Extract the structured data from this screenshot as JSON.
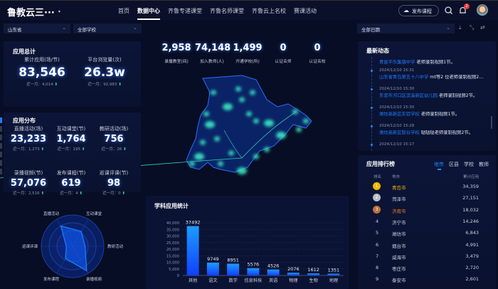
{
  "header": {
    "logo": "鲁教云三···",
    "nav": [
      "首页",
      "数据中心",
      "齐鲁专递课堂",
      "齐鲁名师课堂",
      "齐鲁云上名校",
      "赛课活动"
    ],
    "active_nav": "数据中心",
    "publish": "发布课程",
    "notifications": "2"
  },
  "filters": {
    "province": "山东省",
    "school": "全部学校",
    "date": "全部日期"
  },
  "totals": {
    "title": "应用总计",
    "items": [
      {
        "label": "累计应用(场/节)",
        "value": "83,546",
        "sub": "近一月：4,014"
      },
      {
        "label": "平台浏览量(次)",
        "value": "26.3w",
        "sub": "近一月：92,983"
      }
    ]
  },
  "distribution": {
    "title": "应用分布",
    "items": [
      {
        "label": "直播活动(场)",
        "value": "23,233",
        "sub": "近一月：1,273"
      },
      {
        "label": "互动课堂(节)",
        "value": "1,764",
        "sub": "近一月：195"
      },
      {
        "label": "教研活动(场)",
        "value": "756",
        "sub": "近一月：26"
      },
      {
        "label": "录播视频(节)",
        "value": "57,076",
        "sub": "近一月：2,516"
      },
      {
        "label": "发布课程(节)",
        "value": "619",
        "sub": "近一月：4"
      },
      {
        "label": "巡课评课(节)",
        "value": "98",
        "sub": "近一月：0"
      }
    ]
  },
  "radar": {
    "axes": [
      "直播活动",
      "互动课堂",
      "教研活动",
      "录播视频",
      "发布课程",
      "巡课评课"
    ],
    "values": [
      0.75,
      0.55,
      0.4,
      0.9,
      0.45,
      0.2
    ]
  },
  "center_stats": [
    {
      "value": "2,958",
      "label": "录播教室(间)"
    },
    {
      "value": "74,148",
      "label": "加入教师(人)"
    },
    {
      "value": "1,499",
      "label": "开通学校(所)"
    },
    {
      "value": "0",
      "label": "认证名师"
    },
    {
      "value": "0",
      "label": "认证名校"
    }
  ],
  "chart_data": {
    "type": "bar",
    "title": "学科应用统计",
    "categories": [
      "其他",
      "语文",
      "数学",
      "信息科技",
      "英语",
      "物理",
      "生物",
      "地理"
    ],
    "values": [
      37492,
      9749,
      8951,
      5576,
      4526,
      2076,
      1612,
      1351
    ],
    "ylim": [
      0,
      40000
    ],
    "yticks": [
      "0",
      "5,000",
      "10,000",
      "15,000",
      "20,000",
      "25,000",
      "30,000",
      "35,000",
      "40,000"
    ],
    "grid": true,
    "color": "#1d6bff"
  },
  "feed": {
    "title": "最新动态",
    "items": [
      {
        "date": "",
        "org": "青县平乐集镇中学",
        "text": "老师录制视频1节。"
      },
      {
        "date": "2024/12/10 15:31",
        "org": "山东省青岛第五十八中学",
        "text": "mt等2 位老师录制视频2..."
      },
      {
        "date": "2024/12/10 15:30",
        "org": "东营市河口区滨溪新区幼儿园",
        "text": "老师录制视频2节。"
      },
      {
        "date": "2024/12/10 15:30",
        "org": "潍坊高新区实验学校",
        "text": "老师录制视频1节。"
      },
      {
        "date": "2024/12/10 15:28",
        "org": "潍坊高新区智谷学校",
        "text": "哒哒哒老师录制视频2节。"
      },
      {
        "date": "2024/12/10 15:17",
        "org": "",
        "text": ""
      }
    ]
  },
  "ranking": {
    "title": "应用排行榜",
    "tabs": [
      "地市",
      "区县",
      "学校",
      "教师"
    ],
    "active_tab": "地市",
    "headers": [
      "排名",
      "地市",
      "累计应用"
    ],
    "rows": [
      {
        "rank": "1",
        "city": "青岛市",
        "value": "34,359"
      },
      {
        "rank": "2",
        "city": "菏泽市",
        "value": "27,151"
      },
      {
        "rank": "3",
        "city": "济南市",
        "value": "18,032"
      },
      {
        "rank": "4",
        "city": "济宁市",
        "value": "14,246"
      },
      {
        "rank": "5",
        "city": "潍坊市",
        "value": "6,843"
      },
      {
        "rank": "6",
        "city": "烟台市",
        "value": "4,991"
      },
      {
        "rank": "7",
        "city": "威海市",
        "value": "3,479"
      },
      {
        "rank": "8",
        "city": "枣庄市",
        "value": "2,720"
      },
      {
        "rank": "9",
        "city": "泰安市",
        "value": "2,601"
      }
    ],
    "medal_colors": [
      "#f3b600",
      "#b8bec8",
      "#c0703a"
    ]
  }
}
